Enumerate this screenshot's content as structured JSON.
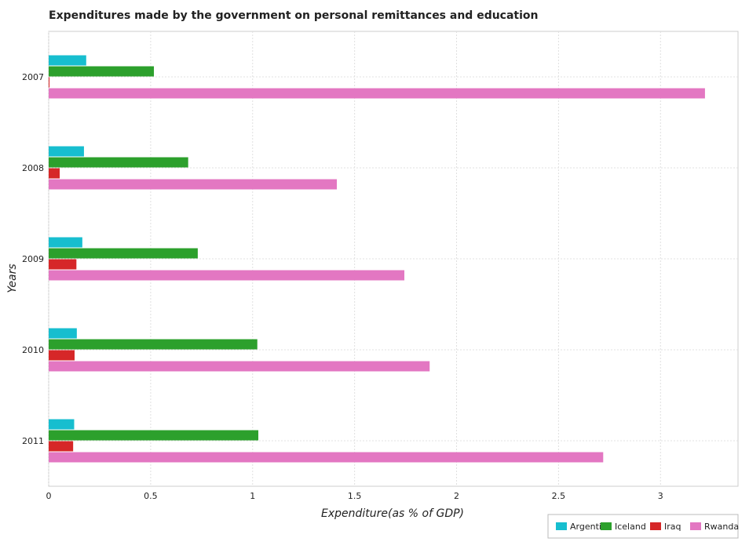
{
  "chart_data": {
    "type": "bar",
    "orientation": "horizontal",
    "title": "Expenditures made by the government on personal remittances and education",
    "xlabel": "Expenditure(as % of GDP)",
    "ylabel": "Years",
    "categories": [
      "2007",
      "2008",
      "2009",
      "2010",
      "2011"
    ],
    "xlim": [
      0,
      3.38
    ],
    "xticks": [
      "0",
      "0.5",
      "1",
      "1.5",
      "2",
      "2.5",
      "3"
    ],
    "grid": true,
    "legend_position": "bottom-right",
    "series": [
      {
        "name": "Argentina",
        "color": "#17becf",
        "values": [
          0.184,
          0.173,
          0.165,
          0.138,
          0.125
        ]
      },
      {
        "name": "Iceland",
        "color": "#2ca02c",
        "values": [
          0.516,
          0.684,
          0.731,
          1.023,
          1.028
        ]
      },
      {
        "name": "Iraq",
        "color": "#d62728",
        "values": [
          0.004,
          0.054,
          0.136,
          0.127,
          0.12
        ]
      },
      {
        "name": "Rwanda",
        "color": "#e377c2",
        "values": [
          3.218,
          1.413,
          1.744,
          1.868,
          2.719
        ]
      }
    ]
  }
}
